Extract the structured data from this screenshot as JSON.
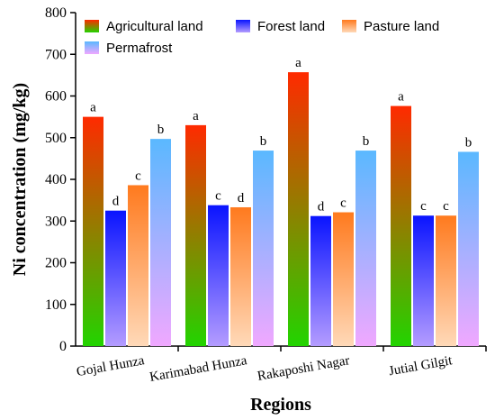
{
  "chart_data": {
    "type": "bar",
    "title": "",
    "xlabel": "Regions",
    "ylabel": "Ni concentration (mg/kg)",
    "ylim": [
      0,
      800
    ],
    "yticks": [
      0,
      100,
      200,
      300,
      400,
      500,
      600,
      700,
      800
    ],
    "categories": [
      "Gojal Hunza",
      "Karimabad Hunza",
      "Rakaposhi Nagar",
      "Jutial Gilgit"
    ],
    "legend_position": "top-left",
    "series": [
      {
        "name": "Agricultural land",
        "values": [
          550,
          530,
          657,
          576
        ],
        "letters": [
          "a",
          "a",
          "a",
          "a"
        ],
        "color_top": "#ff2a00",
        "color_bottom": "#22d400"
      },
      {
        "name": "Forest land",
        "values": [
          325,
          338,
          312,
          313
        ],
        "letters": [
          "d",
          "c",
          "d",
          "c"
        ],
        "color_top": "#0a14ff",
        "color_bottom": "#b49cff"
      },
      {
        "name": "Pasture land",
        "values": [
          386,
          333,
          321,
          313
        ],
        "letters": [
          "c",
          "d",
          "c",
          "c"
        ],
        "color_top": "#ff7a1e",
        "color_bottom": "#ffd9b8"
      },
      {
        "name": "Permafrost",
        "values": [
          497,
          469,
          469,
          466
        ],
        "letters": [
          "b",
          "b",
          "b",
          "b"
        ],
        "color_top": "#5ab8ff",
        "color_bottom": "#f0a8ff"
      }
    ]
  }
}
